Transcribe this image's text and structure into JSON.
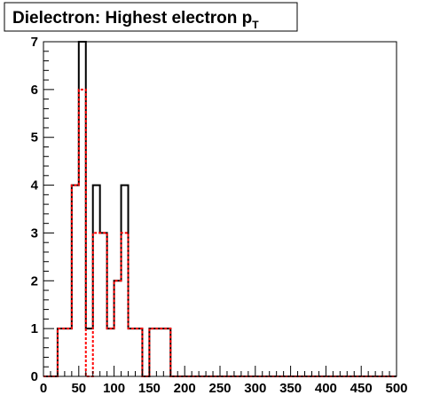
{
  "chart_data": {
    "type": "histogram",
    "title": "Dielectron: Highest electron p",
    "title_subscript": "T",
    "xlabel": "",
    "ylabel": "",
    "xlim": [
      0,
      500
    ],
    "ylim": [
      0,
      7
    ],
    "bin_width": 10,
    "x_ticks": [
      "0",
      "50",
      "100",
      "150",
      "200",
      "250",
      "300",
      "350",
      "400",
      "450",
      "500"
    ],
    "y_ticks": [
      "0",
      "1",
      "2",
      "3",
      "4",
      "5",
      "6",
      "7"
    ],
    "grid": false,
    "legend": "none",
    "series": [
      {
        "color": "#000000",
        "style": "solid",
        "values": [
          0,
          0,
          1,
          1,
          4,
          7,
          1,
          4,
          3,
          1,
          2,
          4,
          1,
          1,
          0,
          1,
          1,
          1,
          0,
          0,
          0,
          0,
          0,
          0,
          0,
          0,
          0,
          0,
          0,
          0,
          0,
          0,
          0,
          0,
          0,
          0,
          0,
          0,
          0,
          0,
          0,
          0,
          0,
          0,
          0,
          0,
          0,
          0,
          0,
          0
        ]
      },
      {
        "color": "#ff0000",
        "style": "dashed",
        "values": [
          0,
          0,
          1,
          1,
          4,
          6,
          0,
          3,
          3,
          1,
          2,
          3,
          1,
          1,
          0,
          1,
          1,
          1,
          0,
          0,
          0,
          0,
          0,
          0,
          0,
          0,
          0,
          0,
          0,
          0,
          0,
          0,
          0,
          0,
          0,
          0,
          0,
          0,
          0,
          0,
          0,
          0,
          0,
          0,
          0,
          0,
          0,
          0,
          0,
          0
        ]
      }
    ]
  }
}
